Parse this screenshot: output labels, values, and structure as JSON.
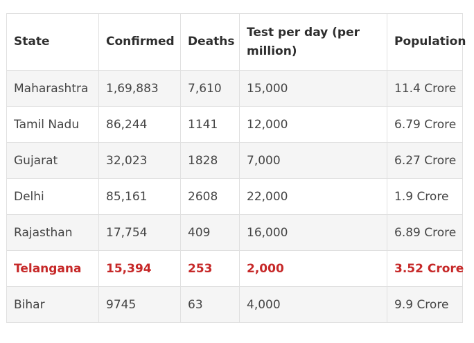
{
  "table": {
    "headers": [
      "State",
      "Confirmed",
      "Deaths",
      "Test per day (per million)",
      "Population"
    ],
    "rows": [
      {
        "state": "Maharashtra",
        "confirmed": "1,69,883",
        "deaths": "7,610",
        "tests": "15,000",
        "population": "11.4 Crore",
        "highlight": false
      },
      {
        "state": "Tamil Nadu",
        "confirmed": "86,244",
        "deaths": "1141",
        "tests": "12,000",
        "population": "6.79 Crore",
        "highlight": false
      },
      {
        "state": "Gujarat",
        "confirmed": "32,023",
        "deaths": "1828",
        "tests": "7,000",
        "population": "6.27 Crore",
        "highlight": false
      },
      {
        "state": "Delhi",
        "confirmed": "85,161",
        "deaths": "2608",
        "tests": "22,000",
        "population": "1.9 Crore",
        "highlight": false
      },
      {
        "state": "Rajasthan",
        "confirmed": "17,754",
        "deaths": "409",
        "tests": "16,000",
        "population": "6.89 Crore",
        "highlight": false
      },
      {
        "state": "Telangana",
        "confirmed": "15,394",
        "deaths": "253",
        "tests": "2,000",
        "population": "3.52 Crore",
        "highlight": true
      },
      {
        "state": "Bihar",
        "confirmed": "9745",
        "deaths": "63",
        "tests": "4,000",
        "population": "9.9 Crore",
        "highlight": false
      }
    ]
  },
  "colors": {
    "highlight_text": "#c62828",
    "stripe": "#f5f5f5",
    "border": "#e0e0e0"
  }
}
